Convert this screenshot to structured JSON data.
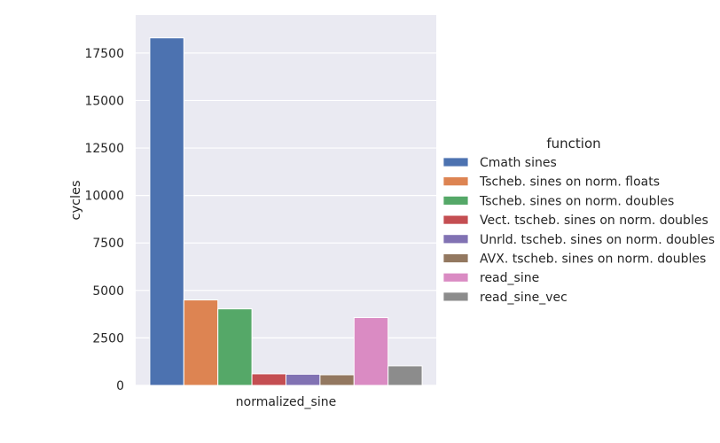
{
  "chart_data": {
    "type": "bar",
    "categories": [
      "normalized_sine"
    ],
    "series": [
      {
        "name": "Cmath sines",
        "values": [
          18300
        ],
        "color": "#4c72b0"
      },
      {
        "name": "Tscheb. sines on norm. floats",
        "values": [
          4500
        ],
        "color": "#dd8452"
      },
      {
        "name": "Tscheb. sines on norm. doubles",
        "values": [
          4030
        ],
        "color": "#55a868"
      },
      {
        "name": "Vect. tscheb. sines on norm. doubles",
        "values": [
          610
        ],
        "color": "#c44e52"
      },
      {
        "name": "Unrld. tscheb. sines on norm. doubles",
        "values": [
          590
        ],
        "color": "#8172b3"
      },
      {
        "name": "AVX. tscheb. sines on norm. doubles",
        "values": [
          560
        ],
        "color": "#937860"
      },
      {
        "name": "read_sine",
        "values": [
          3570
        ],
        "color": "#da8bc3"
      },
      {
        "name": "read_sine_vec",
        "values": [
          1030
        ],
        "color": "#8c8c8c"
      }
    ],
    "xlabel": "",
    "ylabel": "cycles",
    "ylim": [
      0,
      19500
    ],
    "yticks": [
      0,
      2500,
      5000,
      7500,
      10000,
      12500,
      15000,
      17500
    ],
    "legend_title": "function",
    "legend_position": "right",
    "grid": true,
    "background": "#eaeaf2"
  }
}
